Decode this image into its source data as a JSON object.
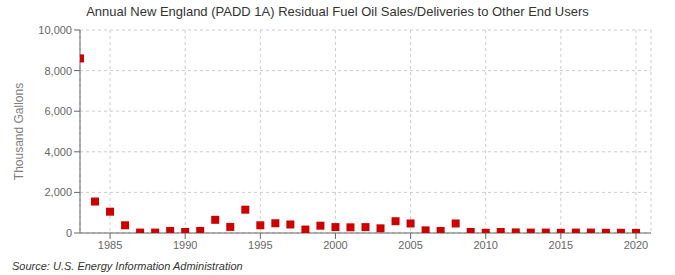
{
  "chart_data": {
    "type": "scatter",
    "title": "Annual New England (PADD 1A) Residual Fuel Oil Sales/Deliveries to Other End Users",
    "ylabel": "Thousand Gallons",
    "source": "Source: U.S. Energy Information Administration",
    "x": [
      1983,
      1984,
      1985,
      1986,
      1987,
      1988,
      1989,
      1990,
      1991,
      1992,
      1993,
      1994,
      1995,
      1996,
      1997,
      1998,
      1999,
      2000,
      2001,
      2002,
      2003,
      2004,
      2005,
      2006,
      2007,
      2008,
      2009,
      2010,
      2011,
      2012,
      2013,
      2014,
      2015,
      2016,
      2017,
      2018,
      2019,
      2020
    ],
    "values": [
      8600,
      1550,
      1050,
      380,
      20,
      20,
      100,
      50,
      100,
      650,
      300,
      1150,
      380,
      480,
      420,
      170,
      360,
      290,
      280,
      290,
      230,
      580,
      470,
      130,
      100,
      470,
      50,
      10,
      50,
      30,
      20,
      20,
      10,
      20,
      20,
      10,
      10,
      5
    ],
    "color": "#cc0000",
    "marker": "square",
    "xlim": [
      1983,
      2021
    ],
    "xticks": [
      1985,
      1990,
      1995,
      2000,
      2005,
      2010,
      2015,
      2020
    ],
    "ylim": [
      0,
      10000
    ],
    "yticks": [
      0,
      {
        "value": 2000,
        "label": "2,000"
      },
      {
        "value": 4000,
        "label": "4,000"
      },
      {
        "value": 6000,
        "label": "6,000"
      },
      {
        "value": 8000,
        "label": "8,000"
      },
      {
        "value": 10000,
        "label": "10,000"
      }
    ],
    "grid": true
  }
}
